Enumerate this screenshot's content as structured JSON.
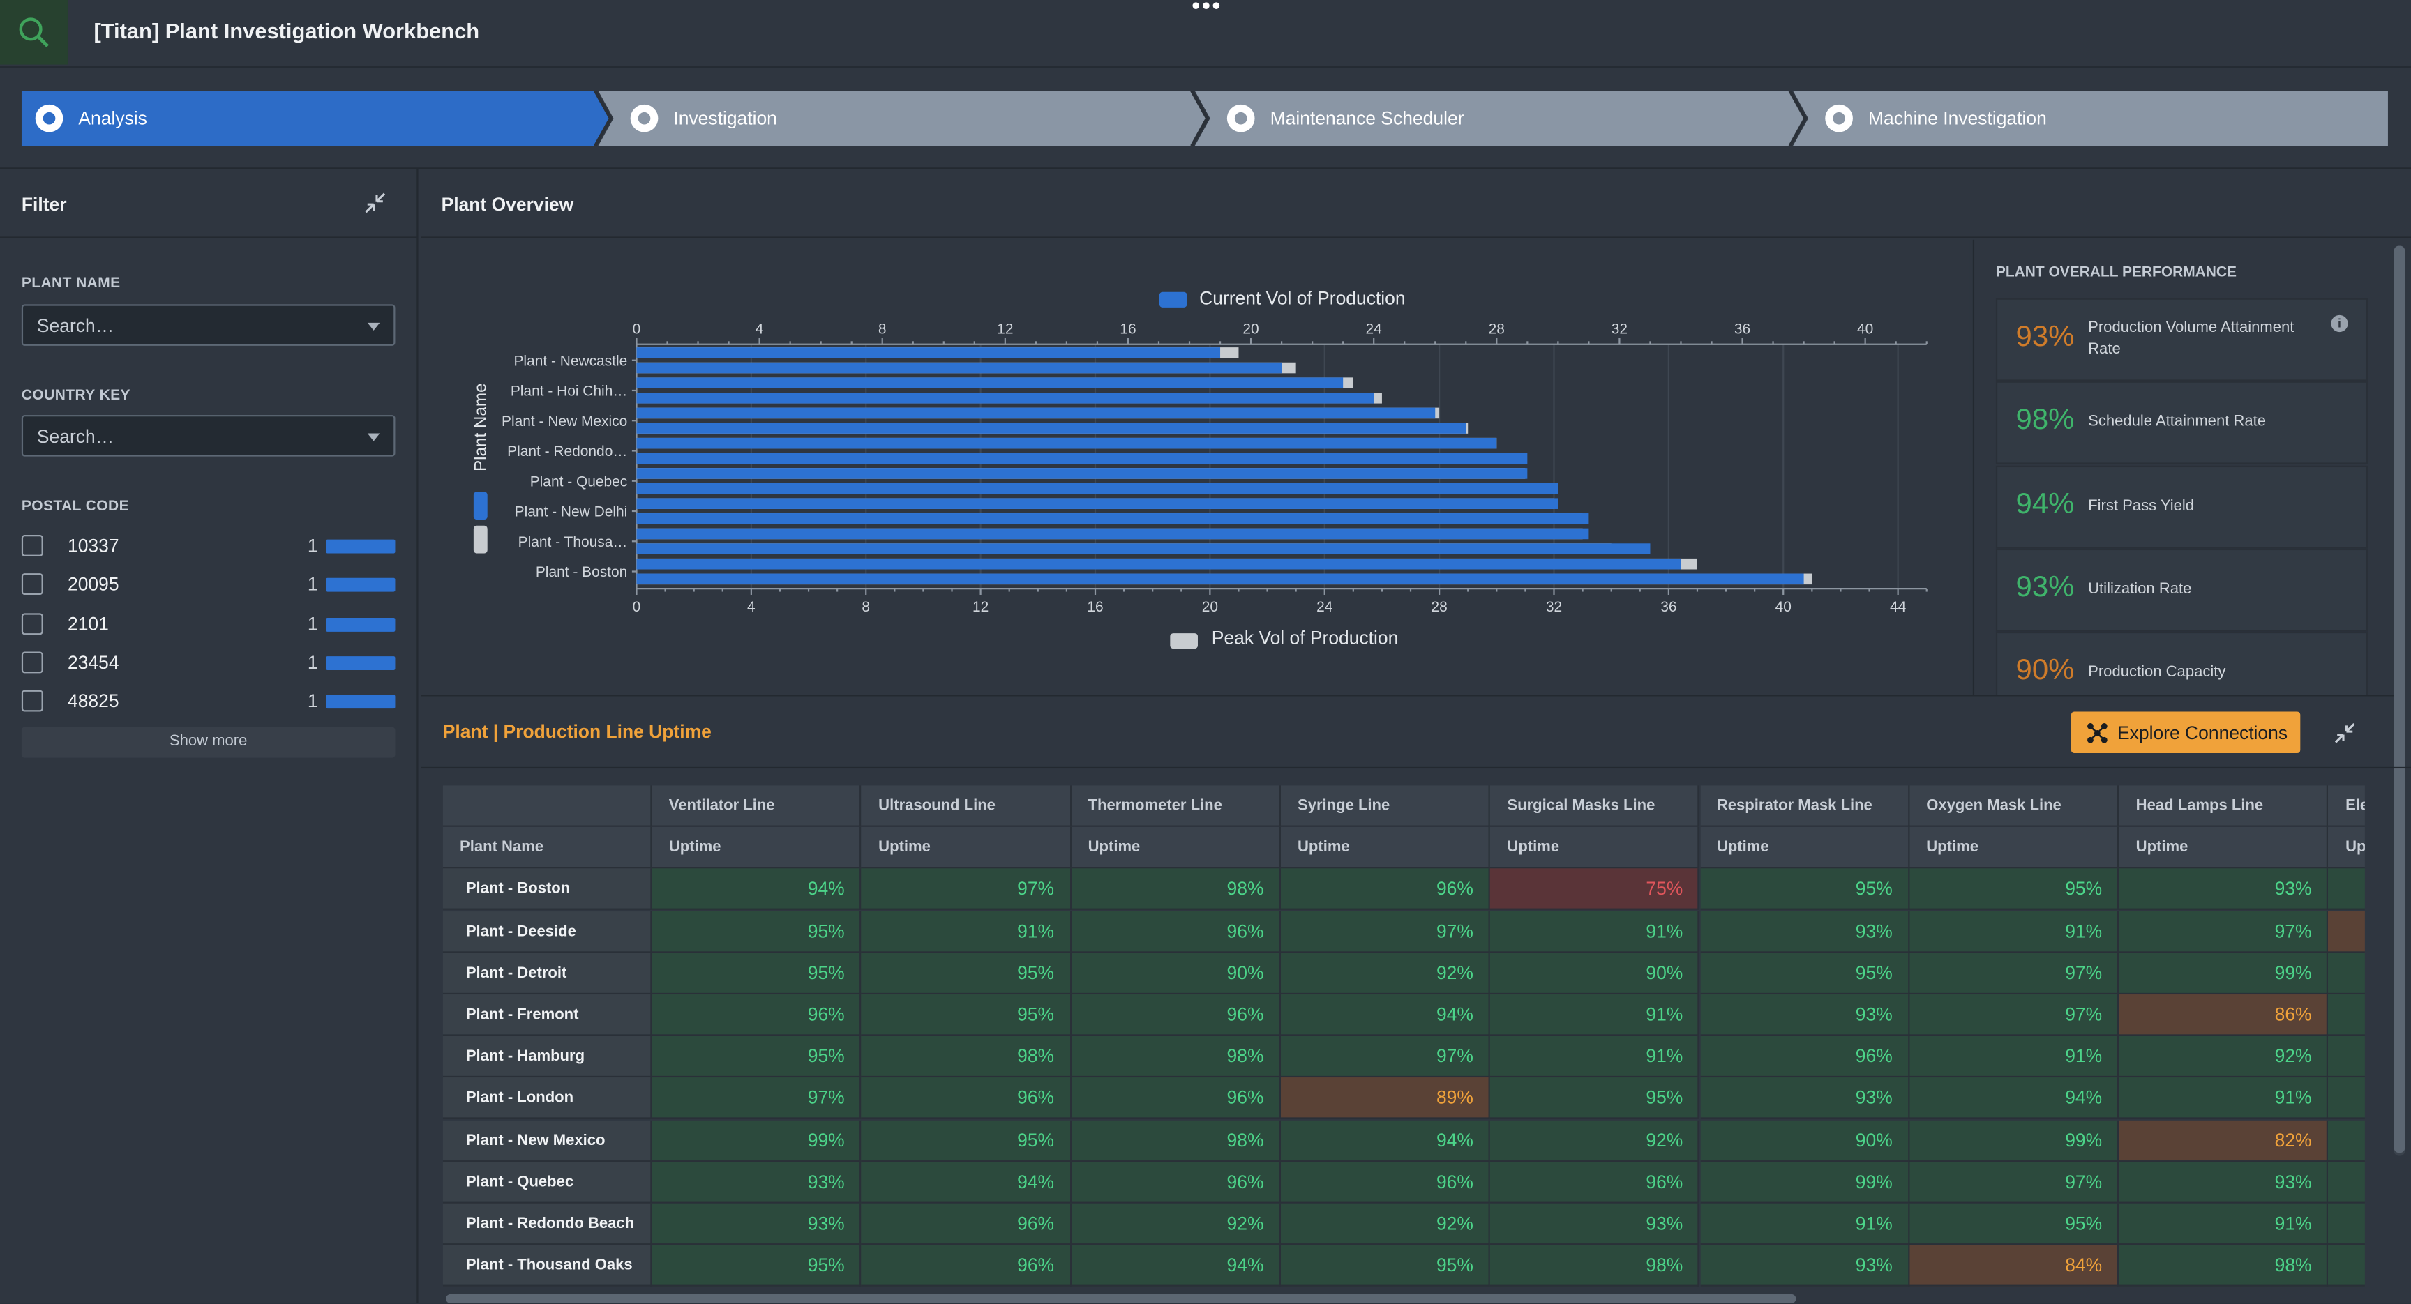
{
  "app": {
    "title": "[Titan] Plant Investigation Workbench",
    "more": "•••"
  },
  "workflow": [
    {
      "label": "Analysis",
      "active": true
    },
    {
      "label": "Investigation",
      "active": false
    },
    {
      "label": "Maintenance Scheduler",
      "active": false
    },
    {
      "label": "Machine Investigation",
      "active": false
    }
  ],
  "filter": {
    "title": "Filter",
    "plant_name": {
      "label": "PLANT NAME",
      "placeholder": "Search…"
    },
    "country_key": {
      "label": "COUNTRY KEY",
      "placeholder": "Search…"
    },
    "postal_code": {
      "label": "POSTAL CODE",
      "items": [
        {
          "code": "10337",
          "count": "1"
        },
        {
          "code": "20095",
          "count": "1"
        },
        {
          "code": "2101",
          "count": "1"
        },
        {
          "code": "23454",
          "count": "1"
        },
        {
          "code": "48825",
          "count": "1"
        }
      ],
      "show_more": "Show more"
    }
  },
  "overview": {
    "title": "Plant Overview"
  },
  "chart_data": {
    "type": "bar",
    "orientation": "horizontal",
    "ylabel": "Plant Name",
    "y_tick_labels": [
      "Plant - Newcastle",
      "Plant - Hoi Chih…",
      "Plant - New Mexico",
      "Plant - Redondo…",
      "Plant - Quebec",
      "Plant - New Delhi",
      "Plant - Thousa…",
      "Plant - Boston"
    ],
    "series": [
      {
        "name": "Current Vol of Production",
        "color": "#2d72d2",
        "axis": "top",
        "xlim": [
          0,
          42
        ],
        "ticks": [
          0,
          4,
          8,
          12,
          16,
          20,
          24,
          28,
          32,
          36,
          40
        ],
        "values": [
          19,
          21,
          23,
          24,
          26,
          27,
          28,
          29,
          29,
          30,
          30,
          31,
          31,
          33,
          34,
          38
        ]
      },
      {
        "name": "Peak Vol of Production",
        "color": "#c8ccd0",
        "axis": "bottom",
        "xlim": [
          0,
          45
        ],
        "ticks": [
          0,
          4,
          8,
          12,
          16,
          20,
          24,
          28,
          32,
          36,
          40,
          44
        ],
        "values": [
          21,
          23,
          25,
          26,
          28,
          29,
          30,
          31,
          31,
          32,
          32,
          33,
          33,
          34,
          37,
          41
        ]
      }
    ],
    "legend_position": "top and bottom"
  },
  "kpi": {
    "title": "PLANT OVERALL PERFORMANCE",
    "info": "i",
    "items": [
      {
        "value": "93%",
        "label": "Production Volume Attainment Rate",
        "color": "#d07c2a"
      },
      {
        "value": "98%",
        "label": "Schedule Attainment Rate",
        "color": "#3fb46b"
      },
      {
        "value": "94%",
        "label": "First Pass Yield",
        "color": "#3fb46b"
      },
      {
        "value": "93%",
        "label": "Utilization Rate",
        "color": "#3fb46b"
      },
      {
        "value": "90%",
        "label": "Production Capacity",
        "color": "#d07c2a"
      }
    ]
  },
  "uptime": {
    "title": "Plant | Production Line Uptime",
    "explore_label": "Explore Connections",
    "plant_header": "Plant Name",
    "sub_header": "Uptime",
    "columns": [
      "Ventilator Line",
      "Ultrasound Line",
      "Thermometer Line",
      "Syringe Line",
      "Surgical Masks Line",
      "Respirator Mask Line",
      "Oxygen Mask Line",
      "Head Lamps Line",
      "Ele"
    ],
    "rows": [
      {
        "plant": "Plant - Boston",
        "values": [
          "94%",
          "97%",
          "98%",
          "96%",
          "75%",
          "95%",
          "95%",
          "93%",
          ""
        ]
      },
      {
        "plant": "Plant - Deeside",
        "values": [
          "95%",
          "91%",
          "96%",
          "97%",
          "91%",
          "93%",
          "91%",
          "97%",
          ""
        ]
      },
      {
        "plant": "Plant - Detroit",
        "values": [
          "95%",
          "95%",
          "90%",
          "92%",
          "90%",
          "95%",
          "97%",
          "99%",
          ""
        ]
      },
      {
        "plant": "Plant - Fremont",
        "values": [
          "96%",
          "95%",
          "96%",
          "94%",
          "91%",
          "93%",
          "97%",
          "86%",
          ""
        ]
      },
      {
        "plant": "Plant - Hamburg",
        "values": [
          "95%",
          "98%",
          "98%",
          "97%",
          "91%",
          "96%",
          "91%",
          "92%",
          ""
        ]
      },
      {
        "plant": "Plant - London",
        "values": [
          "97%",
          "96%",
          "96%",
          "89%",
          "95%",
          "93%",
          "94%",
          "91%",
          ""
        ]
      },
      {
        "plant": "Plant - New Mexico",
        "values": [
          "99%",
          "95%",
          "98%",
          "94%",
          "92%",
          "90%",
          "99%",
          "82%",
          ""
        ]
      },
      {
        "plant": "Plant - Quebec",
        "values": [
          "93%",
          "94%",
          "96%",
          "96%",
          "96%",
          "99%",
          "97%",
          "93%",
          ""
        ]
      },
      {
        "plant": "Plant - Redondo Beach",
        "values": [
          "93%",
          "96%",
          "92%",
          "92%",
          "93%",
          "91%",
          "95%",
          "91%",
          ""
        ]
      },
      {
        "plant": "Plant - Thousand Oaks",
        "values": [
          "95%",
          "96%",
          "94%",
          "95%",
          "98%",
          "93%",
          "84%",
          "98%",
          ""
        ]
      }
    ],
    "colors": {
      "good_bg": "#2c4a3d",
      "good_fg": "#4cd489",
      "warn_bg": "#5a4236",
      "warn_fg": "#f0a23a",
      "bad_bg": "#5a3438",
      "bad_fg": "#e0555b"
    }
  }
}
